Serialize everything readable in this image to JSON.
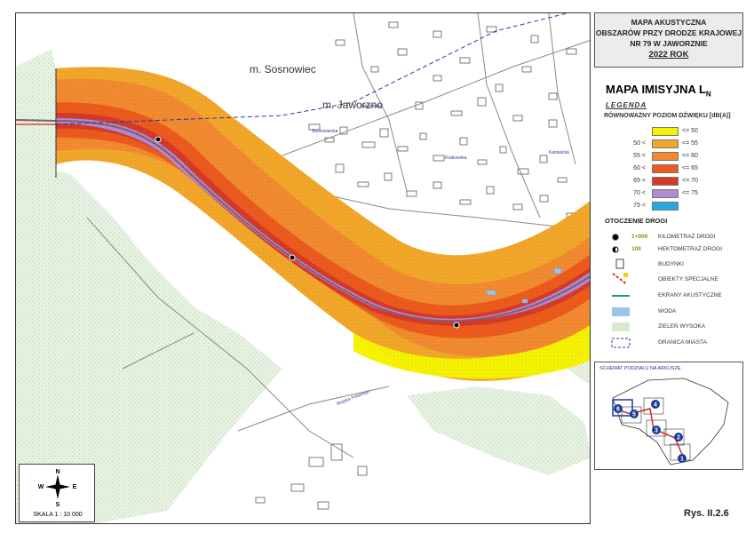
{
  "title": {
    "lines": [
      "MAPA AKUSTYCZNA",
      "OBSZARÓW PRZY DRODZE KRAJOWEJ",
      "NR 79 W JAWORZNIE"
    ],
    "year": "2022 ROK"
  },
  "map": {
    "place_labels": [
      "m. Sosnowiec",
      "m. Jaworzno"
    ],
    "street_labels": [
      "Katowicka",
      "Katowicka",
      "Sosnowiecka",
      "Krakowska",
      "Wojska Polskiego"
    ],
    "compass_letters": [
      "N",
      "S",
      "W",
      "E"
    ],
    "scale": "SKALA 1 : 10 000"
  },
  "legend": {
    "heading": "MAPA IMISYJNA L",
    "heading_sub": "N",
    "legend_word": "LEGENDA",
    "subtitle": "RÓWNOWAŻNY POZIOM DŹWIĘKU [dB(A)]",
    "levels": [
      {
        "from": "",
        "to": "<= 50",
        "color": "#f5f200"
      },
      {
        "from": "50 <",
        "to": "<= 55",
        "color": "#f2a72a"
      },
      {
        "from": "55 <",
        "to": "<= 60",
        "color": "#f28a30"
      },
      {
        "from": "60 <",
        "to": "<= 65",
        "color": "#ec5b1d"
      },
      {
        "from": "65 <",
        "to": "<= 70",
        "color": "#d43a2a"
      },
      {
        "from": "70 <",
        "to": "<= 75",
        "color": "#b18ad6"
      },
      {
        "from": "75 <",
        "to": "",
        "color": "#27a9e0"
      }
    ],
    "surroundings_title": "OTOCZENIE DROGI",
    "km_sample": "1+000",
    "hm_sample": "100",
    "symbols": [
      {
        "label": "KILOMETRAŻ DROGI",
        "icon": "km-dot-icon"
      },
      {
        "label": "HEKTOMETRAŻ DROGI",
        "icon": "hm-dot-icon"
      },
      {
        "label": "BUDYNKI",
        "icon": "building-icon"
      },
      {
        "label": "OBIEKTY SPECJALNE",
        "icon": "special-object-icon"
      },
      {
        "label": "EKRANY AKUSTYCZNE",
        "icon": "noise-barrier-icon"
      },
      {
        "label": "WODA",
        "icon": "water-icon"
      },
      {
        "label": "ZIELEŃ WYSOKA",
        "icon": "forest-icon"
      },
      {
        "label": "GRANICA MIASTA",
        "icon": "city-border-icon"
      }
    ]
  },
  "inset": {
    "title": "SCHEMAT PODZIAŁU NA ARKUSZE",
    "sheets": [
      "1",
      "2",
      "3",
      "4",
      "5",
      "6"
    ]
  },
  "figure_label": "Rys. II.2.6"
}
